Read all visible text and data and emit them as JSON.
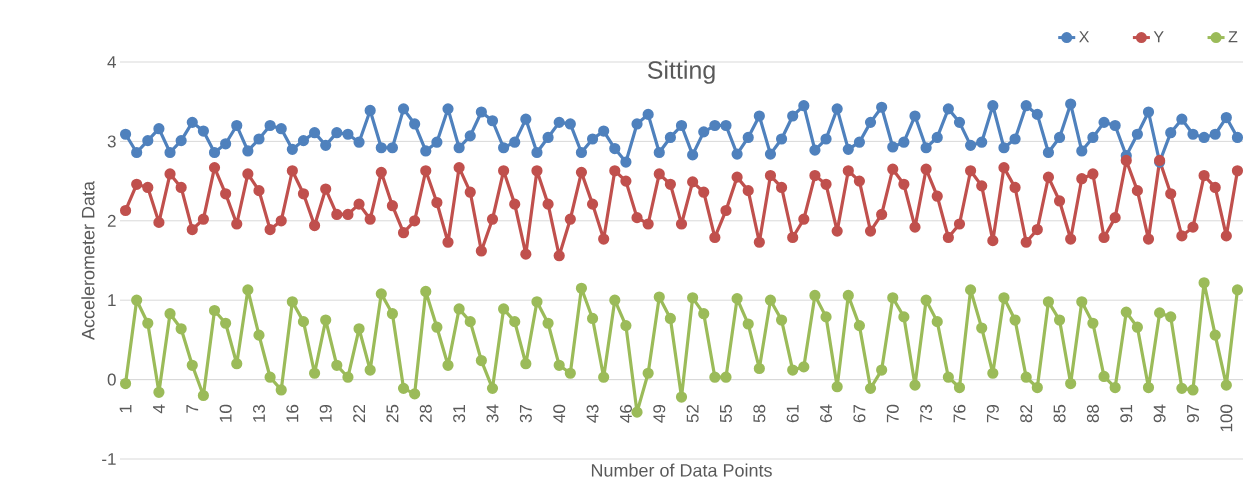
{
  "chart_data": {
    "type": "line",
    "title": "Sitting",
    "xlabel": "Number of Data Points",
    "ylabel": "Accelerometer Data",
    "categories": [
      "1",
      null,
      null,
      "4",
      null,
      null,
      "7",
      null,
      null,
      "10",
      null,
      null,
      "13",
      null,
      null,
      "16",
      null,
      null,
      "19",
      null,
      null,
      "22",
      null,
      null,
      "25",
      null,
      null,
      "28",
      null,
      null,
      "31",
      null,
      null,
      "34",
      null,
      null,
      "37",
      null,
      null,
      "40",
      null,
      null,
      "43",
      null,
      null,
      "46",
      null,
      null,
      "49",
      null,
      null,
      "52",
      null,
      null,
      "55",
      null,
      null,
      "58",
      null,
      null,
      "61",
      null,
      null,
      "64",
      null,
      null,
      "67",
      null,
      null,
      "70",
      null,
      null,
      "73",
      null,
      null,
      "76",
      null,
      null,
      "79",
      null,
      null,
      "82",
      null,
      null,
      "85",
      null,
      null,
      "88",
      null,
      null,
      "91",
      null,
      null,
      "94",
      null,
      null,
      "97",
      null,
      null,
      "100",
      null
    ],
    "series": [
      {
        "name": "X",
        "color": "#4f81bd",
        "values": [
          3.09,
          2.86,
          3.01,
          3.16,
          2.86,
          3.01,
          3.24,
          3.13,
          2.86,
          2.97,
          3.2,
          2.88,
          3.03,
          3.2,
          3.16,
          2.9,
          3.01,
          3.11,
          2.95,
          3.11,
          3.09,
          2.99,
          3.39,
          2.92,
          2.92,
          3.41,
          3.22,
          2.88,
          2.99,
          3.41,
          2.92,
          3.07,
          3.37,
          3.26,
          2.92,
          2.99,
          3.28,
          2.86,
          3.05,
          3.24,
          3.22,
          2.86,
          3.03,
          3.13,
          2.91,
          2.74,
          3.22,
          3.34,
          2.86,
          3.05,
          3.2,
          2.83,
          3.12,
          3.2,
          3.2,
          2.84,
          3.05,
          3.32,
          2.84,
          3.03,
          3.32,
          3.45,
          2.89,
          3.03,
          3.41,
          2.9,
          2.99,
          3.24,
          3.43,
          2.93,
          2.99,
          3.32,
          2.92,
          3.05,
          3.41,
          3.24,
          2.95,
          2.99,
          3.45,
          2.92,
          3.03,
          3.45,
          3.34,
          2.86,
          3.05,
          3.47,
          2.88,
          3.05,
          3.24,
          3.2,
          2.82,
          3.09,
          3.37,
          2.74,
          3.11,
          3.28,
          3.09,
          3.05,
          3.09,
          3.3,
          3.05
        ]
      },
      {
        "name": "Y",
        "color": "#c0504d",
        "values": [
          2.13,
          2.46,
          2.42,
          1.98,
          2.59,
          2.42,
          1.89,
          2.02,
          2.67,
          2.34,
          1.96,
          2.59,
          2.38,
          1.89,
          2.0,
          2.63,
          2.34,
          1.94,
          2.4,
          2.08,
          2.08,
          2.21,
          2.02,
          2.61,
          2.19,
          1.85,
          2.0,
          2.63,
          2.23,
          1.73,
          2.67,
          2.36,
          1.62,
          2.02,
          2.63,
          2.21,
          1.58,
          2.63,
          2.21,
          1.56,
          2.02,
          2.61,
          2.21,
          1.77,
          2.63,
          2.5,
          2.04,
          1.96,
          2.59,
          2.46,
          1.96,
          2.49,
          2.36,
          1.79,
          2.13,
          2.55,
          2.38,
          1.73,
          2.57,
          2.42,
          1.79,
          2.02,
          2.57,
          2.46,
          1.87,
          2.63,
          2.5,
          1.87,
          2.08,
          2.65,
          2.46,
          1.92,
          2.65,
          2.31,
          1.79,
          1.96,
          2.63,
          2.44,
          1.75,
          2.67,
          2.42,
          1.73,
          1.89,
          2.55,
          2.25,
          1.77,
          2.53,
          2.59,
          1.79,
          2.04,
          2.76,
          2.38,
          1.77,
          2.76,
          2.34,
          1.81,
          1.92,
          2.57,
          2.42,
          1.81,
          2.63
        ]
      },
      {
        "name": "Z",
        "color": "#9bbb59",
        "values": [
          -0.05,
          1.0,
          0.71,
          -0.16,
          0.83,
          0.64,
          0.18,
          -0.2,
          0.87,
          0.71,
          0.2,
          1.13,
          0.56,
          0.03,
          -0.13,
          0.98,
          0.73,
          0.08,
          0.75,
          0.18,
          0.03,
          0.64,
          0.12,
          1.08,
          0.83,
          -0.11,
          -0.18,
          1.11,
          0.66,
          0.18,
          0.89,
          0.73,
          0.24,
          -0.11,
          0.89,
          0.73,
          0.2,
          0.98,
          0.71,
          0.18,
          0.08,
          1.15,
          0.77,
          0.03,
          1.0,
          0.68,
          -0.41,
          0.08,
          1.04,
          0.77,
          -0.22,
          1.03,
          0.83,
          0.03,
          0.03,
          1.02,
          0.7,
          0.14,
          1.0,
          0.75,
          0.12,
          0.16,
          1.06,
          0.79,
          -0.09,
          1.06,
          0.68,
          -0.11,
          0.12,
          1.03,
          0.79,
          -0.07,
          1.0,
          0.73,
          0.03,
          -0.1,
          1.13,
          0.65,
          0.08,
          1.03,
          0.75,
          0.03,
          -0.1,
          0.98,
          0.75,
          -0.05,
          0.98,
          0.71,
          0.04,
          -0.1,
          0.85,
          0.66,
          -0.1,
          0.84,
          0.79,
          -0.11,
          -0.13,
          1.22,
          0.56,
          -0.07,
          1.13
        ]
      }
    ],
    "ylim": [
      -1,
      4
    ],
    "yticks": [
      -1,
      0,
      1,
      2,
      3,
      4
    ],
    "grid": "y",
    "legend": "top right",
    "marker": "circle"
  }
}
